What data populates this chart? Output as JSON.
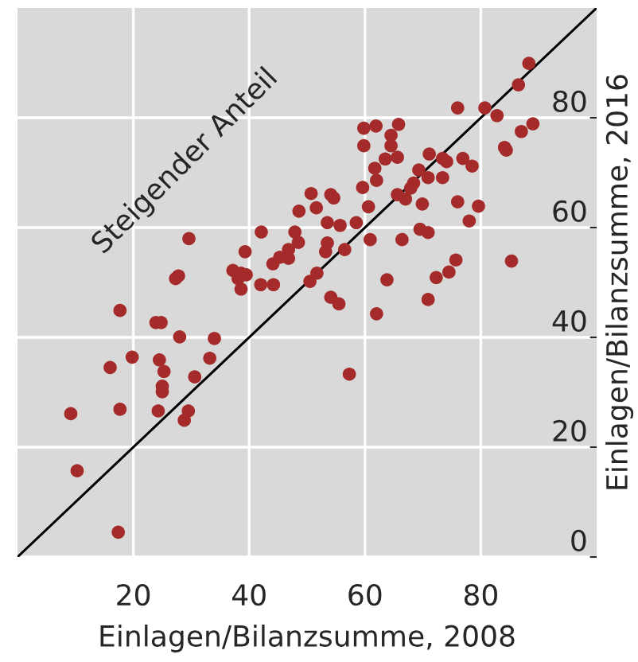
{
  "chart_data": {
    "type": "scatter",
    "xlabel": "Einlagen/Bilanzsumme, 2008",
    "ylabel": "Einlagen/Bilanzsumme, 2016",
    "annotations": [
      "Steigender Anteil"
    ],
    "xlim": [
      0,
      100
    ],
    "ylim": [
      0,
      100
    ],
    "xticks": [
      20,
      40,
      60,
      80
    ],
    "yticks": [
      0,
      20,
      40,
      60,
      80
    ],
    "grid": true,
    "marker": "circle",
    "series": [
      {
        "color": "#a52a2a",
        "x": [
          29.6,
          17.7,
          27.3,
          27.8,
          42.1,
          39.3,
          37.2,
          38.6,
          39.5,
          38.1,
          38.6,
          42.0,
          44.2,
          44.1,
          45.3,
          46.8,
          46.8,
          47.9,
          48.5,
          48.6,
          50.7,
          51.6,
          50.5,
          51.7,
          23.9,
          24.8,
          28.0,
          34.0,
          19.8,
          24.5,
          33.2,
          16.0,
          25.3,
          30.6,
          25.0,
          25.0,
          9.2,
          17.7,
          24.3,
          29.5,
          28.8,
          10.3,
          17.4,
          57.3,
          88.3,
          86.5,
          76.0,
          80.7,
          82.8,
          87.0,
          89.0,
          84.1,
          84.4,
          59.8,
          61.9,
          65.8,
          59.8,
          64.5,
          64.5,
          65.6,
          63.5,
          61.7,
          71.1,
          73.4,
          74.1,
          76.9,
          78.5,
          69.3,
          70.9,
          73.4,
          68.4,
          67.9,
          65.6,
          67.0,
          62.0,
          59.6,
          54.1,
          54.6,
          60.6,
          69.9,
          76.0,
          79.6,
          78.0,
          53.5,
          55.7,
          58.5,
          69.5,
          70.9,
          60.9,
          66.4,
          53.5,
          53.2,
          56.5,
          75.7,
          74.5,
          72.3,
          63.8,
          85.3,
          54.1,
          55.5,
          70.9,
          62.0
        ],
        "values": [
          58.0,
          44.9,
          50.7,
          51.2,
          59.2,
          55.6,
          52.2,
          51.7,
          51.4,
          50.7,
          48.8,
          49.6,
          49.6,
          53.4,
          54.6,
          56.0,
          54.4,
          59.2,
          57.3,
          63.0,
          66.2,
          63.6,
          50.2,
          51.7,
          42.7,
          42.7,
          40.1,
          39.8,
          36.4,
          35.9,
          36.2,
          34.5,
          33.8,
          32.8,
          31.1,
          30.1,
          26.1,
          26.9,
          26.6,
          26.6,
          24.9,
          15.7,
          4.5,
          33.3,
          89.9,
          86.0,
          81.8,
          81.8,
          80.4,
          77.5,
          78.9,
          74.6,
          74.1,
          78.1,
          78.5,
          78.8,
          74.9,
          76.8,
          74.9,
          72.8,
          72.5,
          70.8,
          73.4,
          72.6,
          72.0,
          72.6,
          71.2,
          70.5,
          69.1,
          69.1,
          68.1,
          67.2,
          66.0,
          65.2,
          68.6,
          67.3,
          66.0,
          65.4,
          63.8,
          64.3,
          64.7,
          63.9,
          61.2,
          60.9,
          60.4,
          60.9,
          59.7,
          59.1,
          57.8,
          57.8,
          57.2,
          55.6,
          56.0,
          54.1,
          51.9,
          50.9,
          50.5,
          53.9,
          47.3,
          46.1,
          46.9,
          44.3
        ]
      },
      {
        "type": "line",
        "color": "#000000",
        "line_style": "solid",
        "marker": "none",
        "x": [
          0,
          100
        ],
        "values": [
          0,
          100
        ]
      }
    ]
  }
}
